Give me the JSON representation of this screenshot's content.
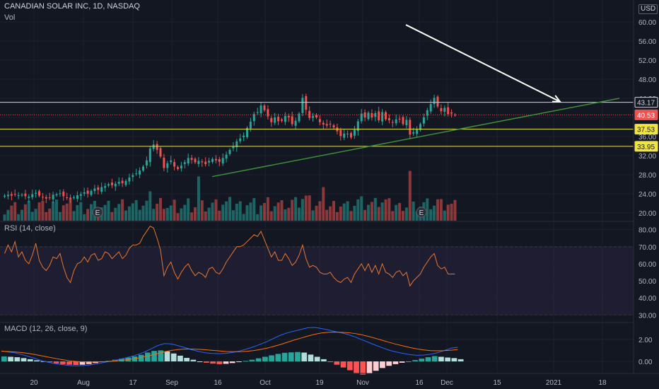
{
  "header": {
    "symbol_line": "CANADIAN SOLAR INC, 1D, NASDAQ",
    "volume_label": "Vol",
    "currency": "USD"
  },
  "rsi_panel": {
    "label": "RSI (14, close)"
  },
  "macd_panel": {
    "label": "MACD (12, 26, close, 9)"
  },
  "colors": {
    "background": "#131722",
    "grid": "#1e222d",
    "up": "#26a69a",
    "down": "#ef5350",
    "horizontal_line": "#d1d4dc",
    "support_line": "#f0e442",
    "trendline": "#3f8f3a",
    "arrow": "#ffffff",
    "rsi_line": "#e8772e",
    "rsi_band": "#7e57c2",
    "macd_line": "#2962ff",
    "signal_line": "#ff6d00"
  },
  "chart_data": {
    "type": "candlestick",
    "x_tick_labels": [
      "20",
      "Aug",
      "17",
      "Sep",
      "16",
      "Oct",
      "19",
      "Nov",
      "16",
      "Dec",
      "15",
      "2021",
      "18"
    ],
    "price_axis": {
      "ticks": [
        20,
        24,
        28,
        32,
        36,
        40,
        44,
        48,
        52,
        56,
        60
      ],
      "tick_labels": [
        "20.00",
        "24.00",
        "28.00",
        "32.00",
        "36.00",
        "40.00",
        "44.00",
        "48.00",
        "52.00",
        "56.00",
        "60.00"
      ],
      "range": [
        19.2,
        60.3
      ]
    },
    "price_labels": [
      {
        "value": 43.17,
        "text": "43.17",
        "style": "white"
      },
      {
        "value": 40.53,
        "text": "40.53",
        "style": "red"
      },
      {
        "value": 37.53,
        "text": "37.53",
        "style": "yellow"
      },
      {
        "value": 33.95,
        "text": "33.95",
        "style": "yellow"
      }
    ],
    "horizontal_lines": [
      {
        "value": 43.17,
        "color": "white"
      },
      {
        "value": 37.53,
        "color": "yellow"
      },
      {
        "value": 33.95,
        "color": "yellow"
      }
    ],
    "last_price_line": 40.53,
    "closes": [
      23.6,
      23.8,
      23.6,
      23.9,
      23.7,
      23.8,
      23.5,
      23.4,
      23.9,
      24.2,
      23.6,
      23.3,
      23.0,
      23.2,
      23.8,
      23.9,
      24.1,
      23.5,
      23.2,
      22.9,
      23.3,
      23.7,
      23.9,
      24.3,
      24.0,
      24.6,
      25.1,
      24.8,
      25.4,
      25.6,
      26.0,
      25.8,
      26.1,
      26.5,
      26.2,
      26.7,
      27.4,
      27.9,
      28.3,
      28.9,
      29.7,
      31.0,
      33.5,
      34.3,
      33.2,
      31.8,
      29.4,
      30.4,
      31.0,
      29.7,
      29.2,
      29.9,
      30.6,
      31.5,
      31.1,
      30.6,
      30.9,
      30.6,
      30.2,
      30.9,
      31.3,
      31.0,
      30.7,
      31.5,
      32.2,
      33.2,
      34.0,
      35.0,
      35.6,
      36.2,
      37.8,
      39.1,
      40.7,
      41.1,
      42.5,
      41.5,
      40.2,
      39.0,
      40.0,
      39.2,
      39.3,
      40.3,
      40.0,
      38.6,
      39.3,
      40.8,
      44.1,
      41.6,
      39.9,
      40.3,
      40.0,
      39.0,
      38.5,
      38.3,
      38.6,
      37.9,
      37.1,
      36.1,
      36.6,
      36.6,
      35.8,
      37.4,
      39.2,
      40.8,
      40.0,
      41.0,
      40.0,
      40.9,
      39.4,
      41.1,
      39.6,
      39.4,
      38.9,
      39.6,
      39.7,
      38.6,
      39.5,
      36.4,
      36.9,
      37.5,
      38.6,
      40.0,
      41.5,
      42.8,
      44.1,
      42.3,
      41.3,
      42.0,
      40.7,
      40.8,
      40.5
    ],
    "highs_above_body": [
      45.4,
      45.8,
      44.6,
      43.3,
      36.9,
      35.4
    ],
    "volume_bars": "per-candle, colored by direction",
    "earnings_markers": [
      {
        "label": "E",
        "position": "late July"
      },
      {
        "label": "E",
        "position": "late November"
      }
    ],
    "trendline": {
      "from": {
        "date": "mid-Sep",
        "price": 27.6
      },
      "to": {
        "date": "mid-Jan 2021",
        "price": 44.0
      }
    },
    "arrow": {
      "from": {
        "date": "early Dec",
        "price": 59.4
      },
      "to": {
        "date": "early Jan 2021",
        "price": 43.3
      }
    },
    "rsi": {
      "ticks": [
        30,
        40,
        50,
        60,
        70,
        80
      ],
      "tick_labels": [
        "30.00",
        "40.00",
        "50.00",
        "60.00",
        "70.00",
        "80.00"
      ],
      "range": [
        26,
        84
      ],
      "bands": [
        30,
        70
      ],
      "values": [
        66,
        71,
        67,
        73,
        64,
        67,
        62,
        60,
        65,
        72,
        62,
        58,
        56,
        59,
        64,
        63,
        66,
        58,
        52,
        49,
        56,
        60,
        61,
        64,
        61,
        65,
        66,
        62,
        63,
        67,
        66,
        63,
        65,
        67,
        63,
        65,
        69,
        71,
        71,
        72,
        76,
        79,
        82,
        81,
        75,
        68,
        53,
        58,
        61,
        55,
        51,
        55,
        58,
        60,
        56,
        53,
        55,
        54,
        52,
        57,
        58,
        55,
        54,
        57,
        61,
        64,
        67,
        70,
        70,
        71,
        73,
        75,
        77,
        76,
        79,
        74,
        69,
        64,
        67,
        62,
        62,
        66,
        63,
        59,
        61,
        65,
        71,
        63,
        58,
        59,
        58,
        55,
        54,
        54,
        55,
        52,
        50,
        49,
        51,
        52,
        49,
        54,
        57,
        60,
        56,
        60,
        55,
        59,
        54,
        60,
        55,
        54,
        52,
        55,
        56,
        53,
        55,
        47,
        50,
        52,
        54,
        58,
        61,
        64,
        66,
        59,
        57,
        58,
        54,
        54,
        54
      ]
    },
    "macd": {
      "ticks": [
        0,
        2
      ],
      "tick_labels": [
        "0.00",
        "2.00"
      ],
      "range": [
        -1.4,
        3.4
      ],
      "macd_line": [
        0.95,
        0.86,
        0.78,
        0.62,
        0.45,
        0.25,
        0.05,
        -0.1,
        -0.22,
        -0.3,
        -0.38,
        -0.4,
        -0.38,
        -0.32,
        -0.22,
        -0.1,
        0.02,
        0.14,
        0.28,
        0.44,
        0.62,
        0.85,
        1.15,
        1.45,
        1.62,
        1.58,
        1.42,
        1.24,
        1.05,
        0.9,
        0.78,
        0.72,
        0.7,
        0.74,
        0.82,
        0.95,
        1.12,
        1.32,
        1.55,
        1.8,
        2.1,
        2.38,
        2.6,
        2.75,
        2.9,
        3.05,
        3.08,
        2.98,
        2.85,
        2.7,
        2.58,
        2.42,
        2.2,
        1.95,
        1.7,
        1.45,
        1.22,
        1.0,
        0.85,
        0.72,
        0.62,
        0.55,
        0.58,
        0.65,
        0.78,
        0.98,
        1.2,
        1.28
      ],
      "signal_line": [
        0.92,
        0.9,
        0.86,
        0.8,
        0.72,
        0.62,
        0.5,
        0.38,
        0.26,
        0.15,
        0.06,
        0.0,
        -0.04,
        -0.06,
        -0.05,
        -0.03,
        0.0,
        0.05,
        0.12,
        0.2,
        0.3,
        0.42,
        0.56,
        0.72,
        0.88,
        1.0,
        1.08,
        1.12,
        1.12,
        1.1,
        1.06,
        1.0,
        0.95,
        0.9,
        0.88,
        0.88,
        0.92,
        0.98,
        1.08,
        1.2,
        1.36,
        1.54,
        1.74,
        1.94,
        2.12,
        2.3,
        2.46,
        2.58,
        2.64,
        2.66,
        2.64,
        2.6,
        2.52,
        2.4,
        2.25,
        2.08,
        1.9,
        1.72,
        1.55,
        1.4,
        1.26,
        1.14,
        1.04,
        0.98,
        0.96,
        0.98,
        1.02,
        1.07
      ],
      "histogram": [
        0.45,
        0.42,
        0.38,
        0.3,
        0.2,
        0.1,
        0.02,
        -0.08,
        -0.18,
        -0.25,
        -0.3,
        -0.32,
        -0.3,
        -0.24,
        -0.15,
        -0.05,
        0.05,
        0.15,
        0.25,
        0.35,
        0.45,
        0.6,
        0.8,
        0.95,
        1.0,
        0.9,
        0.72,
        0.52,
        0.32,
        0.15,
        0.0,
        -0.12,
        -0.2,
        -0.25,
        -0.22,
        -0.15,
        -0.05,
        0.05,
        0.15,
        0.28,
        0.42,
        0.55,
        0.68,
        0.78,
        0.82,
        0.85,
        0.8,
        0.62,
        0.42,
        0.2,
        -0.05,
        -0.3,
        -0.55,
        -0.8,
        -1.05,
        -1.2,
        -1.1,
        -0.85,
        -0.6,
        -0.4,
        -0.25,
        -0.12,
        0.0,
        0.12,
        0.25,
        0.38,
        0.48,
        0.42,
        0.35,
        0.3,
        0.2
      ]
    }
  }
}
